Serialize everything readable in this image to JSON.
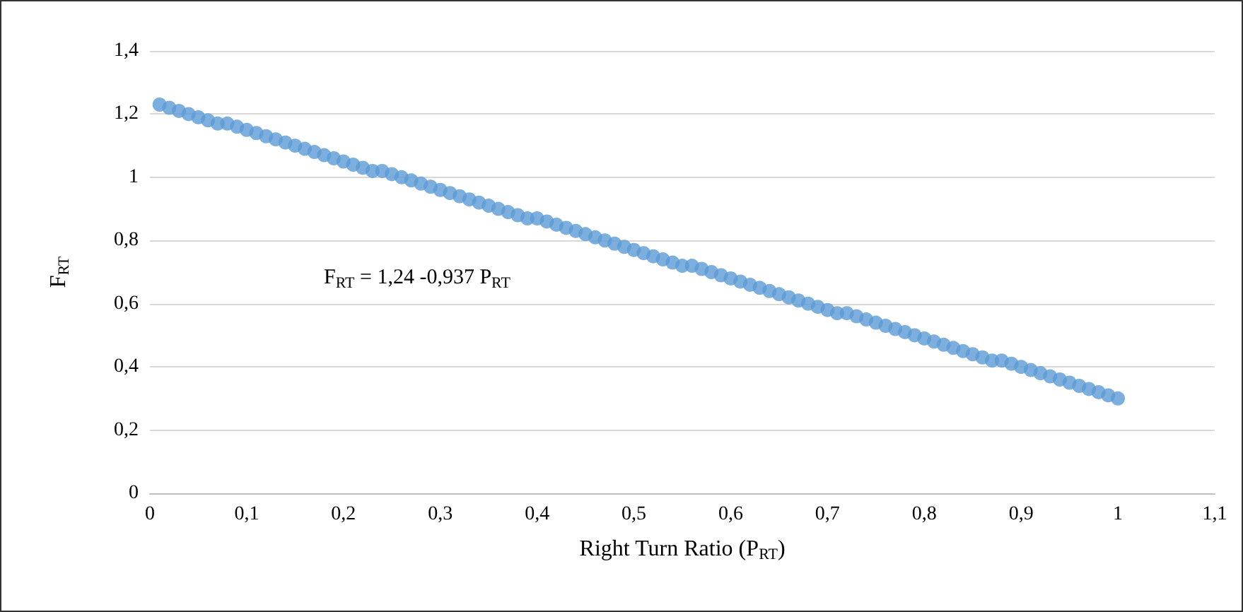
{
  "chart_data": {
    "type": "scatter",
    "xlabel": "Right Turn Ratio (P$_{RT}$)",
    "ylabel": "F$_{RT}$",
    "annotations": [
      "F$_{RT}$ = 1,24 -0,937 P$_{RT}$"
    ],
    "x": [
      0.01,
      0.02,
      0.03,
      0.04,
      0.05,
      0.06,
      0.07,
      0.08,
      0.09,
      0.1,
      0.11,
      0.12,
      0.13,
      0.14,
      0.15,
      0.16,
      0.17,
      0.18,
      0.19,
      0.2,
      0.21,
      0.22,
      0.23,
      0.24,
      0.25,
      0.26,
      0.27,
      0.28,
      0.29,
      0.3,
      0.31,
      0.32,
      0.33,
      0.34,
      0.35,
      0.36,
      0.37,
      0.38,
      0.39,
      0.4,
      0.41,
      0.42,
      0.43,
      0.44,
      0.45,
      0.46,
      0.47,
      0.48,
      0.49,
      0.5,
      0.51,
      0.52,
      0.53,
      0.54,
      0.55,
      0.56,
      0.57,
      0.58,
      0.59,
      0.6,
      0.61,
      0.62,
      0.63,
      0.64,
      0.65,
      0.66,
      0.67,
      0.68,
      0.69,
      0.7,
      0.71,
      0.72,
      0.73,
      0.74,
      0.75,
      0.76,
      0.77,
      0.78,
      0.79,
      0.8,
      0.81,
      0.82,
      0.83,
      0.84,
      0.85,
      0.86,
      0.87,
      0.88,
      0.89,
      0.9,
      0.91,
      0.92,
      0.93,
      0.94,
      0.95,
      0.96,
      0.97,
      0.98,
      0.99,
      1
    ],
    "series": [
      {
        "color": "#5b9bd5",
        "values": [
          1.23,
          1.22,
          1.21,
          1.2,
          1.19,
          1.18,
          1.17,
          1.17,
          1.16,
          1.15,
          1.14,
          1.13,
          1.12,
          1.11,
          1.1,
          1.09,
          1.08,
          1.07,
          1.06,
          1.05,
          1.04,
          1.03,
          1.02,
          1.02,
          1.01,
          1,
          0.99,
          0.98,
          0.97,
          0.96,
          0.95,
          0.94,
          0.93,
          0.92,
          0.91,
          0.9,
          0.89,
          0.88,
          0.87,
          0.87,
          0.86,
          0.85,
          0.84,
          0.83,
          0.82,
          0.81,
          0.8,
          0.79,
          0.78,
          0.77,
          0.76,
          0.75,
          0.74,
          0.73,
          0.72,
          0.72,
          0.71,
          0.7,
          0.69,
          0.68,
          0.67,
          0.66,
          0.65,
          0.64,
          0.63,
          0.62,
          0.61,
          0.6,
          0.59,
          0.58,
          0.57,
          0.57,
          0.56,
          0.55,
          0.54,
          0.53,
          0.52,
          0.51,
          0.5,
          0.49,
          0.48,
          0.47,
          0.46,
          0.45,
          0.44,
          0.43,
          0.42,
          0.42,
          0.41,
          0.4,
          0.39,
          0.38,
          0.37,
          0.36,
          0.35,
          0.34,
          0.33,
          0.32,
          0.31,
          0.3
        ]
      }
    ],
    "xlim": [
      0,
      1.1
    ],
    "xticks": [
      0,
      {
        "value": 0.1,
        "label": "0,1"
      },
      {
        "value": 0.2,
        "label": "0,2"
      },
      {
        "value": 0.3,
        "label": "0,3"
      },
      {
        "value": 0.4,
        "label": "0,4"
      },
      {
        "value": 0.5,
        "label": "0,5"
      },
      {
        "value": 0.6,
        "label": "0,6"
      },
      {
        "value": 0.7,
        "label": "0,7"
      },
      {
        "value": 0.8,
        "label": "0,8"
      },
      {
        "value": 0.9,
        "label": "0,9"
      },
      1,
      {
        "value": 1.1,
        "label": "1,1"
      }
    ],
    "ylim": [
      0,
      1.4
    ],
    "yticks": [
      0,
      {
        "value": 0.2,
        "label": "0,2"
      },
      {
        "value": 0.4,
        "label": "0,4"
      },
      {
        "value": 0.6,
        "label": "0,6"
      },
      {
        "value": 0.8,
        "label": "0,8"
      },
      1,
      {
        "value": 1.2,
        "label": "1,2"
      },
      {
        "value": 1.4,
        "label": "1,4"
      }
    ],
    "grid": "y",
    "marker": "circle"
  }
}
